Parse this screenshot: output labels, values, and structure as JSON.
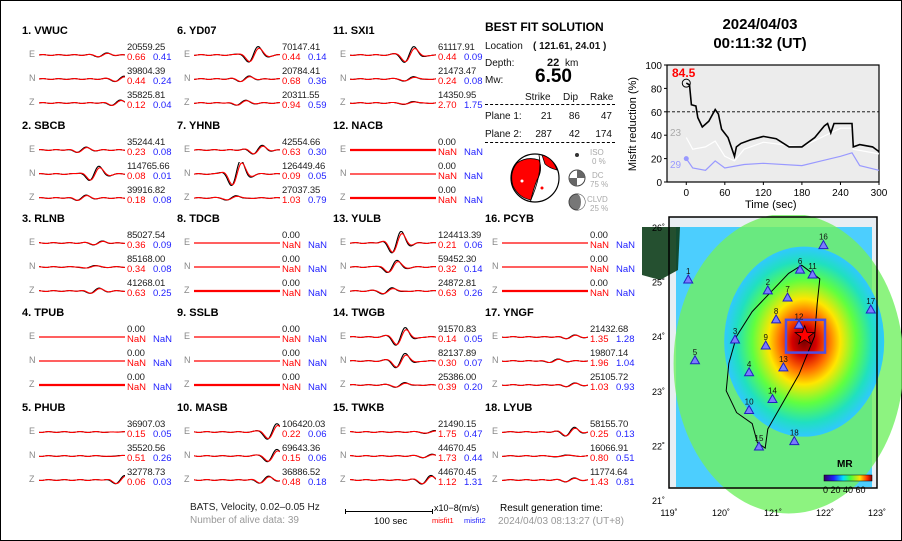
{
  "stations": [
    {
      "num": "1.",
      "name": "VWUC",
      "comps": [
        {
          "label": "E",
          "amp": "20559.25",
          "m1": "0.66",
          "m2": "0.41"
        },
        {
          "label": "N",
          "amp": "39804.39",
          "m1": "0.44",
          "m2": "0.24"
        },
        {
          "label": "Z",
          "amp": "35825.81",
          "m1": "0.12",
          "m2": "0.04"
        }
      ]
    },
    {
      "num": "2.",
      "name": "SBCB",
      "comps": [
        {
          "label": "E",
          "amp": "35244.41",
          "m1": "0.23",
          "m2": "0.08"
        },
        {
          "label": "N",
          "amp": "114765.66",
          "m1": "0.08",
          "m2": "0.01"
        },
        {
          "label": "Z",
          "amp": "39916.82",
          "m1": "0.18",
          "m2": "0.08"
        }
      ]
    },
    {
      "num": "3.",
      "name": "RLNB",
      "comps": [
        {
          "label": "E",
          "amp": "85027.54",
          "m1": "0.36",
          "m2": "0.09"
        },
        {
          "label": "N",
          "amp": "85168.00",
          "m1": "0.34",
          "m2": "0.08"
        },
        {
          "label": "Z",
          "amp": "41268.01",
          "m1": "0.63",
          "m2": "0.25"
        }
      ]
    },
    {
      "num": "4.",
      "name": "TPUB",
      "comps": [
        {
          "label": "E",
          "amp": "0.00",
          "m1": "NaN",
          "m2": "NaN"
        },
        {
          "label": "N",
          "amp": "0.00",
          "m1": "NaN",
          "m2": "NaN"
        },
        {
          "label": "Z",
          "amp": "0.00",
          "m1": "NaN",
          "m2": "NaN"
        }
      ]
    },
    {
      "num": "5.",
      "name": "PHUB",
      "comps": [
        {
          "label": "E",
          "amp": "36907.03",
          "m1": "0.15",
          "m2": "0.05"
        },
        {
          "label": "N",
          "amp": "35520.56",
          "m1": "0.51",
          "m2": "0.26"
        },
        {
          "label": "Z",
          "amp": "32778.73",
          "m1": "0.06",
          "m2": "0.03"
        }
      ]
    },
    {
      "num": "6.",
      "name": "YD07",
      "comps": [
        {
          "label": "E",
          "amp": "70147.41",
          "m1": "0.44",
          "m2": "0.14"
        },
        {
          "label": "N",
          "amp": "20784.41",
          "m1": "0.68",
          "m2": "0.36"
        },
        {
          "label": "Z",
          "amp": "20311.55",
          "m1": "0.94",
          "m2": "0.59"
        }
      ]
    },
    {
      "num": "7.",
      "name": "YHNB",
      "comps": [
        {
          "label": "E",
          "amp": "42554.66",
          "m1": "0.63",
          "m2": "0.30"
        },
        {
          "label": "N",
          "amp": "126449.46",
          "m1": "0.09",
          "m2": "0.05"
        },
        {
          "label": "Z",
          "amp": "27037.35",
          "m1": "1.03",
          "m2": "0.79"
        }
      ]
    },
    {
      "num": "8.",
      "name": "TDCB",
      "comps": [
        {
          "label": "E",
          "amp": "0.00",
          "m1": "NaN",
          "m2": "NaN"
        },
        {
          "label": "N",
          "amp": "0.00",
          "m1": "NaN",
          "m2": "NaN"
        },
        {
          "label": "Z",
          "amp": "0.00",
          "m1": "NaN",
          "m2": "NaN"
        }
      ]
    },
    {
      "num": "9.",
      "name": "SSLB",
      "comps": [
        {
          "label": "E",
          "amp": "0.00",
          "m1": "NaN",
          "m2": "NaN"
        },
        {
          "label": "N",
          "amp": "0.00",
          "m1": "NaN",
          "m2": "NaN"
        },
        {
          "label": "Z",
          "amp": "0.00",
          "m1": "NaN",
          "m2": "NaN"
        }
      ]
    },
    {
      "num": "10.",
      "name": "MASB",
      "comps": [
        {
          "label": "E",
          "amp": "106420.03",
          "m1": "0.22",
          "m2": "0.06"
        },
        {
          "label": "N",
          "amp": "69643.36",
          "m1": "0.15",
          "m2": "0.06"
        },
        {
          "label": "Z",
          "amp": "36886.52",
          "m1": "0.48",
          "m2": "0.18"
        }
      ]
    },
    {
      "num": "11.",
      "name": "SXI1",
      "comps": [
        {
          "label": "E",
          "amp": "61117.91",
          "m1": "0.44",
          "m2": "0.09"
        },
        {
          "label": "N",
          "amp": "21473.47",
          "m1": "0.24",
          "m2": "0.08"
        },
        {
          "label": "Z",
          "amp": "14350.95",
          "m1": "2.70",
          "m2": "1.75"
        }
      ]
    },
    {
      "num": "12.",
      "name": "NACB",
      "comps": [
        {
          "label": "E",
          "amp": "0.00",
          "m1": "NaN",
          "m2": "NaN"
        },
        {
          "label": "N",
          "amp": "0.00",
          "m1": "NaN",
          "m2": "NaN"
        },
        {
          "label": "Z",
          "amp": "0.00",
          "m1": "NaN",
          "m2": "NaN"
        }
      ]
    },
    {
      "num": "13.",
      "name": "YULB",
      "comps": [
        {
          "label": "E",
          "amp": "124413.39",
          "m1": "0.21",
          "m2": "0.06"
        },
        {
          "label": "N",
          "amp": "59452.30",
          "m1": "0.32",
          "m2": "0.14"
        },
        {
          "label": "Z",
          "amp": "24872.81",
          "m1": "0.63",
          "m2": "0.26"
        }
      ]
    },
    {
      "num": "14.",
      "name": "TWGB",
      "comps": [
        {
          "label": "E",
          "amp": "91570.83",
          "m1": "0.14",
          "m2": "0.05"
        },
        {
          "label": "N",
          "amp": "82137.89",
          "m1": "0.30",
          "m2": "0.07"
        },
        {
          "label": "Z",
          "amp": "25386.00",
          "m1": "0.39",
          "m2": "0.20"
        }
      ]
    },
    {
      "num": "15.",
      "name": "TWKB",
      "comps": [
        {
          "label": "E",
          "amp": "21490.15",
          "m1": "1.75",
          "m2": "0.47"
        },
        {
          "label": "N",
          "amp": "44670.45",
          "m1": "1.73",
          "m2": "0.44"
        },
        {
          "label": "Z",
          "amp": "44670.45",
          "m1": "1.12",
          "m2": "1.31"
        }
      ]
    },
    {
      "num": "16.",
      "name": "PCYB",
      "comps": [
        {
          "label": "E",
          "amp": "0.00",
          "m1": "NaN",
          "m2": "NaN"
        },
        {
          "label": "N",
          "amp": "0.00",
          "m1": "NaN",
          "m2": "NaN"
        },
        {
          "label": "Z",
          "amp": "0.00",
          "m1": "NaN",
          "m2": "NaN"
        }
      ]
    },
    {
      "num": "17.",
      "name": "YNGF",
      "comps": [
        {
          "label": "E",
          "amp": "21432.68",
          "m1": "1.35",
          "m2": "1.28"
        },
        {
          "label": "N",
          "amp": "19807.14",
          "m1": "1.96",
          "m2": "1.04"
        },
        {
          "label": "Z",
          "amp": "25105.72",
          "m1": "1.03",
          "m2": "0.93"
        }
      ]
    },
    {
      "num": "18.",
      "name": "LYUB",
      "comps": [
        {
          "label": "E",
          "amp": "58155.70",
          "m1": "0.25",
          "m2": "0.13"
        },
        {
          "label": "N",
          "amp": "16066.91",
          "m1": "0.80",
          "m2": "0.51"
        },
        {
          "label": "Z",
          "amp": "11774.64",
          "m1": "1.43",
          "m2": "0.81"
        }
      ]
    }
  ],
  "solution": {
    "title": "BEST FIT SOLUTION",
    "location_label": "Location",
    "location": "( 121.61,  24.01 )",
    "depth_label": "Depth:",
    "depth": "22",
    "depth_unit": "km",
    "mw_label": "Mw:",
    "mw": "6.50",
    "columns": [
      "Strike",
      "Dip",
      "Rake"
    ],
    "planes": [
      {
        "label": "Plane 1:",
        "strike": "21",
        "dip": "86",
        "rake": "47"
      },
      {
        "label": "Plane 2:",
        "strike": "287",
        "dip": "42",
        "rake": "174"
      }
    ],
    "iso_label": "ISO",
    "iso": "0  %",
    "dc_label": "DC",
    "dc": "75 %",
    "clvd_label": "CLVD",
    "clvd": "25 %"
  },
  "header": {
    "date": "2024/04/03",
    "time": "00:11:32  (UT)"
  },
  "footer": {
    "filter": "BATS, Velocity, 0.02–0.05 Hz",
    "alive": "Number of alive data: 39",
    "scale": "100 sec",
    "units": "x10−8(m/s)",
    "misfit1": "misfit1",
    "misfit2": "misfit2",
    "gen_label": "Result generation time:",
    "gen_time": "2024/04/03 08:13:27 (UT+8)"
  },
  "colors": {
    "observed": "#000000",
    "synthetic": "#ff0000",
    "misfit1": "#ff0000",
    "misfit2": "#2222ff",
    "best": "#000000",
    "second": "#ffffff",
    "third": "#9999ff"
  },
  "chart_data": [
    {
      "type": "line",
      "xlabel": "Time (sec)",
      "ylabel": "Misfit reduction (%)",
      "xlim": [
        -30,
        300
      ],
      "ylim": [
        0,
        100
      ],
      "xticks": [
        "0",
        "60",
        "120",
        "180",
        "240",
        "300"
      ],
      "yticks": [
        "0",
        "20",
        "40",
        "60",
        "80",
        "100"
      ],
      "threshold": 60,
      "peak_label": "84.5",
      "series": [
        {
          "label": "",
          "color": "#000000",
          "x": [
            0,
            5,
            8,
            15,
            18,
            25,
            35,
            45,
            50,
            55,
            65,
            75,
            78,
            85,
            100,
            120,
            140,
            160,
            180,
            200,
            215,
            220,
            225,
            230,
            240,
            258,
            260,
            270,
            290,
            300
          ],
          "y": [
            84.5,
            83,
            66,
            65,
            55,
            47,
            52,
            62,
            58,
            45,
            38,
            22,
            30,
            33,
            36,
            39,
            37,
            30,
            30,
            38,
            48,
            50,
            42,
            50,
            50,
            50,
            30,
            32,
            30,
            26
          ]
        },
        {
          "label": "23",
          "color": "#ffffff",
          "x": [
            0,
            10,
            30,
            45,
            60,
            75,
            90,
            120,
            150,
            180,
            210,
            240,
            258,
            260,
            300
          ],
          "y": [
            38,
            28,
            30,
            35,
            22,
            18,
            28,
            34,
            32,
            30,
            38,
            46,
            46,
            28,
            24
          ]
        },
        {
          "label": "29",
          "color": "#9999ff",
          "x": [
            0,
            10,
            30,
            45,
            60,
            90,
            120,
            180,
            210,
            240,
            258,
            270,
            300
          ],
          "y": [
            20,
            12,
            10,
            18,
            12,
            15,
            16,
            14,
            18,
            22,
            25,
            14,
            10
          ]
        }
      ]
    }
  ],
  "map": {
    "lon_ticks": [
      "119˚",
      "120˚",
      "121˚",
      "122˚",
      "123˚"
    ],
    "lat_ticks": [
      "26˚",
      "25˚",
      "24˚",
      "23˚",
      "22˚",
      "21˚"
    ],
    "colorbar_title": "MR",
    "colorbar_ticks": "0 20 40 60",
    "epicenter": {
      "lon": 121.61,
      "lat": 24.01
    },
    "stations": [
      {
        "n": "1",
        "lon": 119.37,
        "lat": 25.03
      },
      {
        "n": "2",
        "lon": 120.9,
        "lat": 24.83
      },
      {
        "n": "3",
        "lon": 120.27,
        "lat": 23.93
      },
      {
        "n": "4",
        "lon": 120.54,
        "lat": 23.33
      },
      {
        "n": "5",
        "lon": 119.5,
        "lat": 23.55
      },
      {
        "n": "6",
        "lon": 121.52,
        "lat": 25.21
      },
      {
        "n": "7",
        "lon": 121.28,
        "lat": 24.7
      },
      {
        "n": "8",
        "lon": 121.06,
        "lat": 24.3
      },
      {
        "n": "9",
        "lon": 120.86,
        "lat": 23.82
      },
      {
        "n": "10",
        "lon": 120.54,
        "lat": 22.64
      },
      {
        "n": "11",
        "lon": 121.76,
        "lat": 25.12
      },
      {
        "n": "12",
        "lon": 121.5,
        "lat": 24.2
      },
      {
        "n": "13",
        "lon": 121.2,
        "lat": 23.42
      },
      {
        "n": "14",
        "lon": 120.99,
        "lat": 22.84
      },
      {
        "n": "15",
        "lon": 120.73,
        "lat": 21.97
      },
      {
        "n": "16",
        "lon": 121.97,
        "lat": 25.66
      },
      {
        "n": "17",
        "lon": 122.88,
        "lat": 24.48
      },
      {
        "n": "18",
        "lon": 121.41,
        "lat": 22.07
      }
    ]
  }
}
